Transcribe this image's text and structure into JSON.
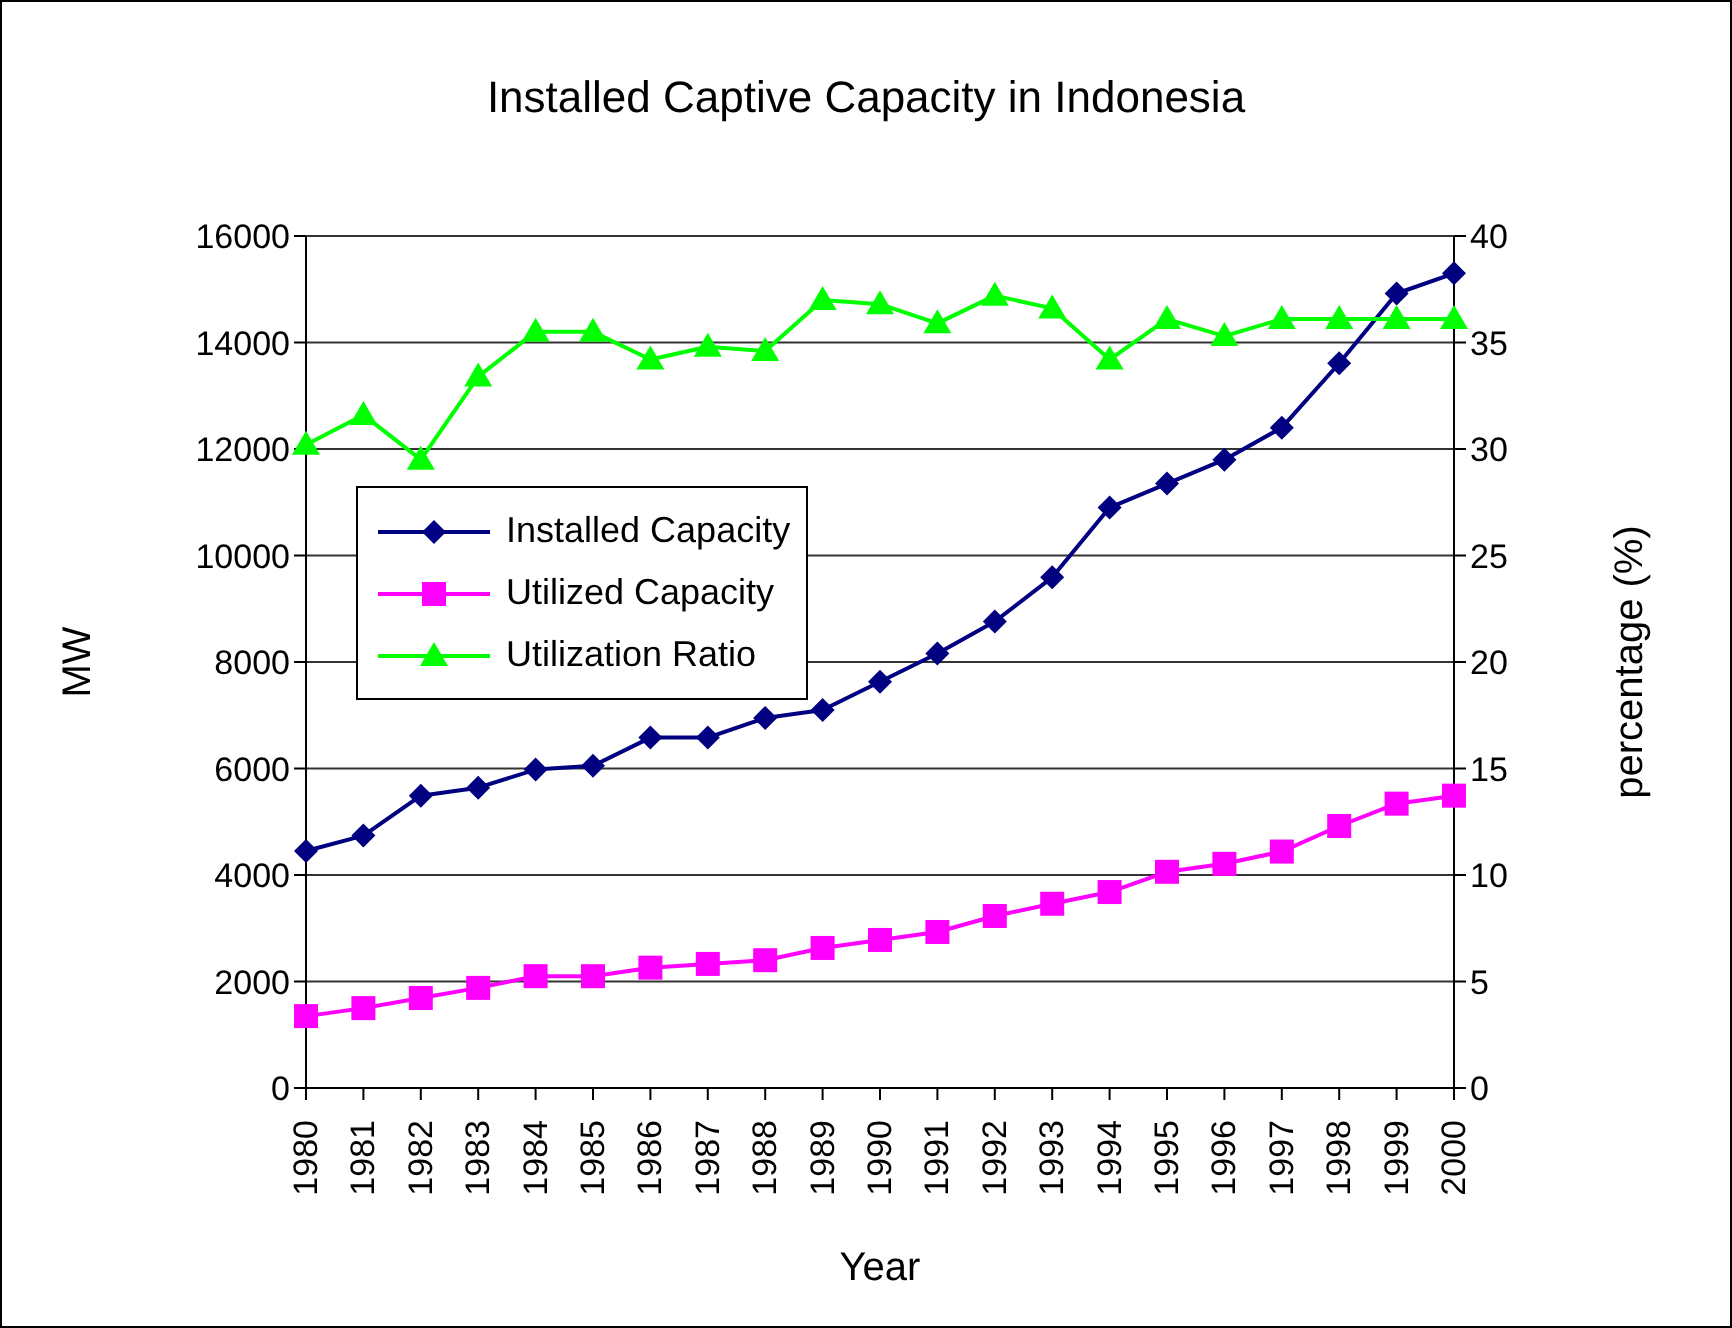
{
  "chart_data": {
    "type": "line",
    "title": "Installed Captive Capacity in Indonesia",
    "xlabel": "Year",
    "ylabel": "MW",
    "y2label": "percentage (%)",
    "categories": [
      "1980",
      "1981",
      "1982",
      "1983",
      "1984",
      "1985",
      "1986",
      "1987",
      "1988",
      "1989",
      "1990",
      "1991",
      "1992",
      "1993",
      "1994",
      "1995",
      "1996",
      "1997",
      "1998",
      "1999",
      "2000"
    ],
    "series": [
      {
        "name": "Installed Capacity",
        "color": "#000080",
        "marker": "diamond",
        "values": [
          4450,
          4740,
          5490,
          5640,
          5980,
          6050,
          6580,
          6580,
          6950,
          7100,
          7630,
          8160,
          8760,
          9590,
          10900,
          11350,
          11800,
          12400,
          13610,
          14920,
          15300
        ]
      },
      {
        "name": "Utilized Capacity",
        "color": "#ff00ff",
        "marker": "square",
        "values": [
          1350,
          1500,
          1690,
          1880,
          2100,
          2100,
          2260,
          2330,
          2400,
          2630,
          2780,
          2930,
          3230,
          3460,
          3680,
          4060,
          4210,
          4440,
          4920,
          5340,
          5490
        ]
      },
      {
        "name": "Utilization Ratio",
        "color": "#00ff00",
        "marker": "triangle",
        "axis": "y2",
        "values": [
          30.2,
          31.6,
          29.5,
          33.4,
          35.5,
          35.5,
          34.2,
          34.8,
          34.6,
          37.0,
          36.8,
          35.9,
          37.2,
          36.6,
          34.2,
          36.1,
          35.3,
          36.1,
          36.1,
          36.1,
          36.1
        ]
      }
    ],
    "ylim": [
      0,
      16000
    ],
    "yticks": [
      0,
      2000,
      4000,
      6000,
      8000,
      10000,
      12000,
      14000,
      16000
    ],
    "y2lim": [
      0,
      40
    ],
    "y2ticks": [
      0,
      5,
      10,
      15,
      20,
      25,
      30,
      35,
      40
    ],
    "grid": "y",
    "legend": "left"
  }
}
